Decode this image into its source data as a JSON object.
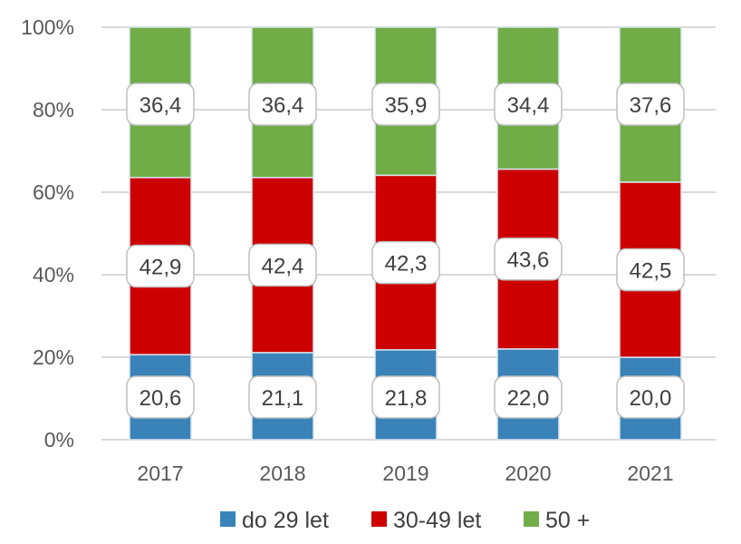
{
  "chart_data": {
    "type": "bar",
    "stacked": "percent",
    "categories": [
      "2017",
      "2018",
      "2019",
      "2020",
      "2021"
    ],
    "series": [
      {
        "name": "do 29 let",
        "color": "#3a83b8",
        "values": [
          20.6,
          21.1,
          21.8,
          22.0,
          20.0
        ],
        "labels": [
          "20,6",
          "21,1",
          "21,8",
          "22,0",
          "20,0"
        ]
      },
      {
        "name": "30-49 let",
        "color": "#cc0000",
        "values": [
          42.9,
          42.4,
          42.3,
          43.6,
          42.5
        ],
        "labels": [
          "42,9",
          "42,4",
          "42,3",
          "43,6",
          "42,5"
        ]
      },
      {
        "name": "50 +",
        "color": "#70ad47",
        "values": [
          36.4,
          36.4,
          35.9,
          34.4,
          37.6
        ],
        "labels": [
          "36,4",
          "36,4",
          "35,9",
          "34,4",
          "37,6"
        ]
      }
    ],
    "yticks": [
      "0%",
      "20%",
      "40%",
      "60%",
      "80%",
      "100%"
    ],
    "ylim": [
      0,
      100
    ],
    "grid": true,
    "legend": "bottom",
    "title": "",
    "xlabel": "",
    "ylabel": ""
  }
}
